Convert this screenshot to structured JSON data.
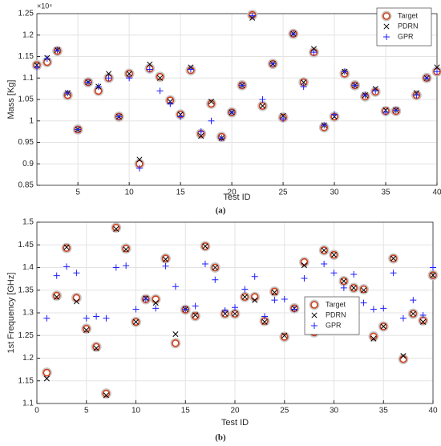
{
  "chart_data": [
    {
      "type": "scatter",
      "ylabel": "Mass [Kg]",
      "xlabel": "Test ID",
      "caption": "(a)",
      "exponent": "×10⁴",
      "x": [
        1,
        2,
        3,
        4,
        5,
        6,
        7,
        8,
        9,
        10,
        11,
        12,
        13,
        14,
        15,
        16,
        17,
        18,
        19,
        20,
        21,
        22,
        23,
        24,
        25,
        26,
        27,
        28,
        29,
        30,
        31,
        32,
        33,
        34,
        35,
        36,
        37,
        38,
        39,
        40
      ],
      "series": [
        {
          "name": "Target",
          "color": "#d2401c",
          "marker": "o",
          "values": [
            1.13,
            1.137,
            1.163,
            1.06,
            0.98,
            1.09,
            1.07,
            1.1,
            1.01,
            1.11,
            0.9,
            1.122,
            1.103,
            1.048,
            1.015,
            1.118,
            0.97,
            1.04,
            0.963,
            1.02,
            1.083,
            1.247,
            1.035,
            1.133,
            1.008,
            1.203,
            1.09,
            1.16,
            0.985,
            1.01,
            1.11,
            1.083,
            1.057,
            1.068,
            1.023,
            1.023,
            1.2,
            1.06,
            1.1,
            1.115
          ]
        },
        {
          "name": "PDRN",
          "color": "#000000",
          "marker": "x",
          "values": [
            1.13,
            1.147,
            1.165,
            1.065,
            0.98,
            1.09,
            1.08,
            1.11,
            1.01,
            1.11,
            0.91,
            1.132,
            1.1,
            1.045,
            1.015,
            1.125,
            0.965,
            1.045,
            0.96,
            1.02,
            1.083,
            1.24,
            1.035,
            1.133,
            1.012,
            1.203,
            1.09,
            1.168,
            0.99,
            1.01,
            1.115,
            1.083,
            1.06,
            1.075,
            1.025,
            1.025,
            1.2,
            1.065,
            1.1,
            1.125
          ]
        },
        {
          "name": "GPR",
          "color": "#1f1fff",
          "marker": "+",
          "values": [
            1.125,
            1.145,
            1.165,
            1.065,
            0.98,
            1.09,
            1.08,
            1.1,
            1.01,
            1.1,
            0.89,
            1.12,
            1.07,
            1.04,
            1.01,
            1.12,
            0.975,
            1.0,
            0.96,
            1.02,
            1.083,
            1.245,
            1.05,
            1.133,
            1.005,
            1.203,
            1.08,
            1.16,
            0.99,
            1.015,
            1.115,
            1.083,
            1.06,
            1.07,
            1.02,
            1.025,
            1.2,
            1.06,
            1.1,
            1.115
          ]
        }
      ],
      "xlim": [
        1,
        40
      ],
      "xticks": [
        5,
        10,
        15,
        20,
        25,
        30,
        35,
        40
      ],
      "ylim": [
        0.85,
        1.25
      ],
      "yticks": [
        0.85,
        0.9,
        0.95,
        1,
        1.05,
        1.1,
        1.15,
        1.2,
        1.25
      ],
      "grid": true,
      "legend": "upper right"
    },
    {
      "type": "scatter",
      "ylabel": "1st Frequency [GHz]",
      "xlabel": "Test ID",
      "caption": "(b)",
      "x": [
        1,
        2,
        3,
        4,
        5,
        6,
        7,
        8,
        9,
        10,
        11,
        12,
        13,
        14,
        15,
        16,
        17,
        18,
        19,
        20,
        21,
        22,
        23,
        24,
        25,
        26,
        27,
        28,
        29,
        30,
        31,
        32,
        33,
        34,
        35,
        36,
        37,
        38,
        39,
        40
      ],
      "series": [
        {
          "name": "Target",
          "color": "#d2401c",
          "marker": "o",
          "values": [
            1.168,
            1.338,
            1.443,
            1.333,
            1.265,
            1.225,
            1.122,
            1.488,
            1.442,
            1.28,
            1.33,
            1.33,
            1.42,
            1.233,
            1.307,
            1.293,
            1.447,
            1.4,
            1.298,
            1.298,
            1.335,
            1.335,
            1.282,
            1.347,
            1.247,
            1.31,
            1.412,
            1.257,
            1.438,
            1.428,
            1.37,
            1.355,
            1.352,
            1.248,
            1.27,
            1.42,
            1.198,
            1.298,
            1.283,
            1.383
          ]
        },
        {
          "name": "PDRN",
          "color": "#000000",
          "marker": "x",
          "values": [
            1.155,
            1.335,
            1.445,
            1.325,
            1.262,
            1.222,
            1.118,
            1.485,
            1.44,
            1.28,
            1.332,
            1.322,
            1.418,
            1.253,
            1.308,
            1.295,
            1.447,
            1.4,
            1.298,
            1.298,
            1.335,
            1.328,
            1.28,
            1.345,
            1.25,
            1.31,
            1.405,
            1.257,
            1.438,
            1.428,
            1.37,
            1.355,
            1.35,
            1.243,
            1.27,
            1.42,
            1.205,
            1.298,
            1.28,
            1.383
          ]
        },
        {
          "name": "GPR",
          "color": "#1f1fff",
          "marker": "+",
          "values": [
            1.288,
            1.382,
            1.402,
            1.388,
            1.288,
            1.292,
            1.288,
            1.4,
            1.404,
            1.308,
            1.33,
            1.31,
            1.403,
            1.358,
            1.308,
            1.315,
            1.408,
            1.373,
            1.305,
            1.312,
            1.352,
            1.38,
            1.292,
            1.328,
            1.33,
            1.308,
            1.376,
            1.305,
            1.408,
            1.388,
            1.355,
            1.385,
            1.322,
            1.308,
            1.31,
            1.388,
            1.288,
            1.328,
            1.295,
            1.4
          ]
        }
      ],
      "xlim": [
        0,
        40
      ],
      "xticks": [
        0,
        5,
        10,
        15,
        20,
        25,
        30,
        35,
        40
      ],
      "ylim": [
        1.1,
        1.5
      ],
      "yticks": [
        1.1,
        1.15,
        1.2,
        1.25,
        1.3,
        1.35,
        1.4,
        1.45,
        1.5
      ],
      "grid": true,
      "legend": "lower right"
    }
  ]
}
